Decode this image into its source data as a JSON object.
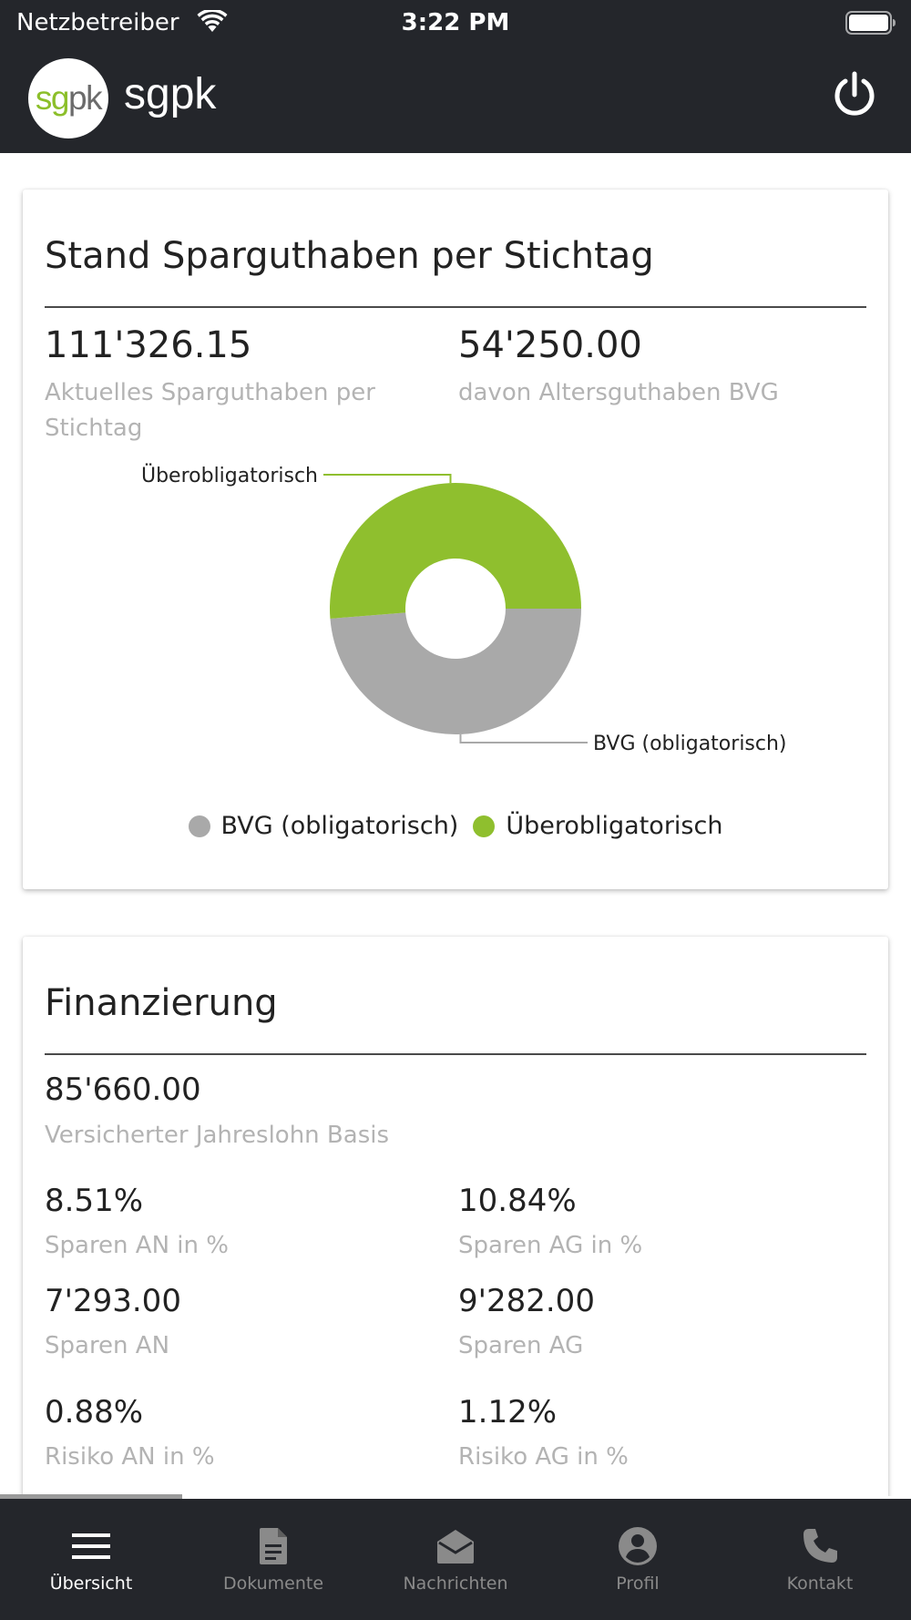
{
  "status_bar": {
    "carrier": "Netzbetreiber",
    "time": "3:22 PM"
  },
  "header": {
    "logo_sg": "sg",
    "logo_pk": "pk",
    "title": "sgpk"
  },
  "savings": {
    "title": "Stand Sparguthaben per Stichtag",
    "balance_value": "111'326.15",
    "balance_label_line1": "Aktuelles Sparguthaben per",
    "balance_label_line2": "Stichtag",
    "bvg_value": "54'250.00",
    "bvg_label": "davon Altersguthaben BVG"
  },
  "chart_data": {
    "type": "pie",
    "donut": true,
    "categories": [
      "BVG (obligatorisch)",
      "Überobligatorisch"
    ],
    "values": [
      54250.0,
      57076.15
    ],
    "colors": [
      "#a9a9a9",
      "#8fbf2e"
    ],
    "callouts": [
      "BVG (obligatorisch)",
      "Überobligatorisch"
    ],
    "legend_placement": "bottom-center"
  },
  "finance": {
    "title": "Finanzierung",
    "salary_value": "85'660.00",
    "salary_label": "Versicherter Jahreslohn Basis",
    "an_pct_value": "8.51%",
    "an_pct_label": "Sparen AN in %",
    "ag_pct_value": "10.84%",
    "ag_pct_label": "Sparen AG in %",
    "an_value": "7'293.00",
    "an_label": "Sparen AN",
    "ag_value": "9'282.00",
    "ag_label": "Sparen AG",
    "risk_an_value": "0.88%",
    "risk_an_label": "Risiko AN in %",
    "risk_ag_value": "1.12%",
    "risk_ag_label": "Risiko AG in %"
  },
  "nav": {
    "overview": "Übersicht",
    "documents": "Dokumente",
    "messages": "Nachrichten",
    "profile": "Profil",
    "contact": "Kontakt",
    "icons": [
      "menu-icon",
      "document-icon",
      "envelope-open-icon",
      "account-circle-icon",
      "phone-icon"
    ]
  }
}
